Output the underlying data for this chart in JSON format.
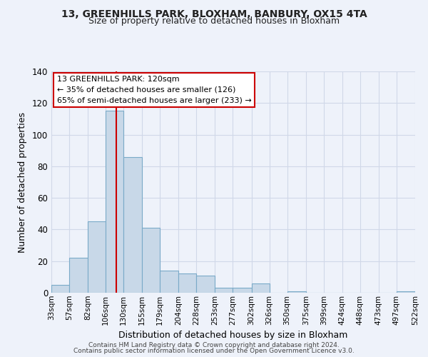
{
  "title1": "13, GREENHILLS PARK, BLOXHAM, BANBURY, OX15 4TA",
  "title2": "Size of property relative to detached houses in Bloxham",
  "xlabel": "Distribution of detached houses by size in Bloxham",
  "ylabel": "Number of detached properties",
  "bar_color": "#c8d8e8",
  "bar_edge_color": "#7aaac8",
  "background_color": "#eef2fa",
  "grid_color": "#d0d8e8",
  "bins": [
    33,
    57,
    82,
    106,
    130,
    155,
    179,
    204,
    228,
    253,
    277,
    302,
    326,
    350,
    375,
    399,
    424,
    448,
    473,
    497,
    522
  ],
  "counts": [
    5,
    22,
    45,
    115,
    86,
    41,
    14,
    12,
    11,
    3,
    3,
    6,
    0,
    1,
    0,
    0,
    0,
    0,
    0,
    1
  ],
  "tick_labels": [
    "33sqm",
    "57sqm",
    "82sqm",
    "106sqm",
    "130sqm",
    "155sqm",
    "179sqm",
    "204sqm",
    "228sqm",
    "253sqm",
    "277sqm",
    "302sqm",
    "326sqm",
    "350sqm",
    "375sqm",
    "399sqm",
    "424sqm",
    "448sqm",
    "473sqm",
    "497sqm",
    "522sqm"
  ],
  "ylim": [
    0,
    140
  ],
  "yticks": [
    0,
    20,
    40,
    60,
    80,
    100,
    120,
    140
  ],
  "annotation_title": "13 GREENHILLS PARK: 120sqm",
  "annotation_line1": "← 35% of detached houses are smaller (126)",
  "annotation_line2": "65% of semi-detached houses are larger (233) →",
  "annotation_box_color": "#ffffff",
  "annotation_box_edge_color": "#cc0000",
  "property_line_x": 120,
  "property_line_color": "#cc0000",
  "footer1": "Contains HM Land Registry data © Crown copyright and database right 2024.",
  "footer2": "Contains public sector information licensed under the Open Government Licence v3.0."
}
